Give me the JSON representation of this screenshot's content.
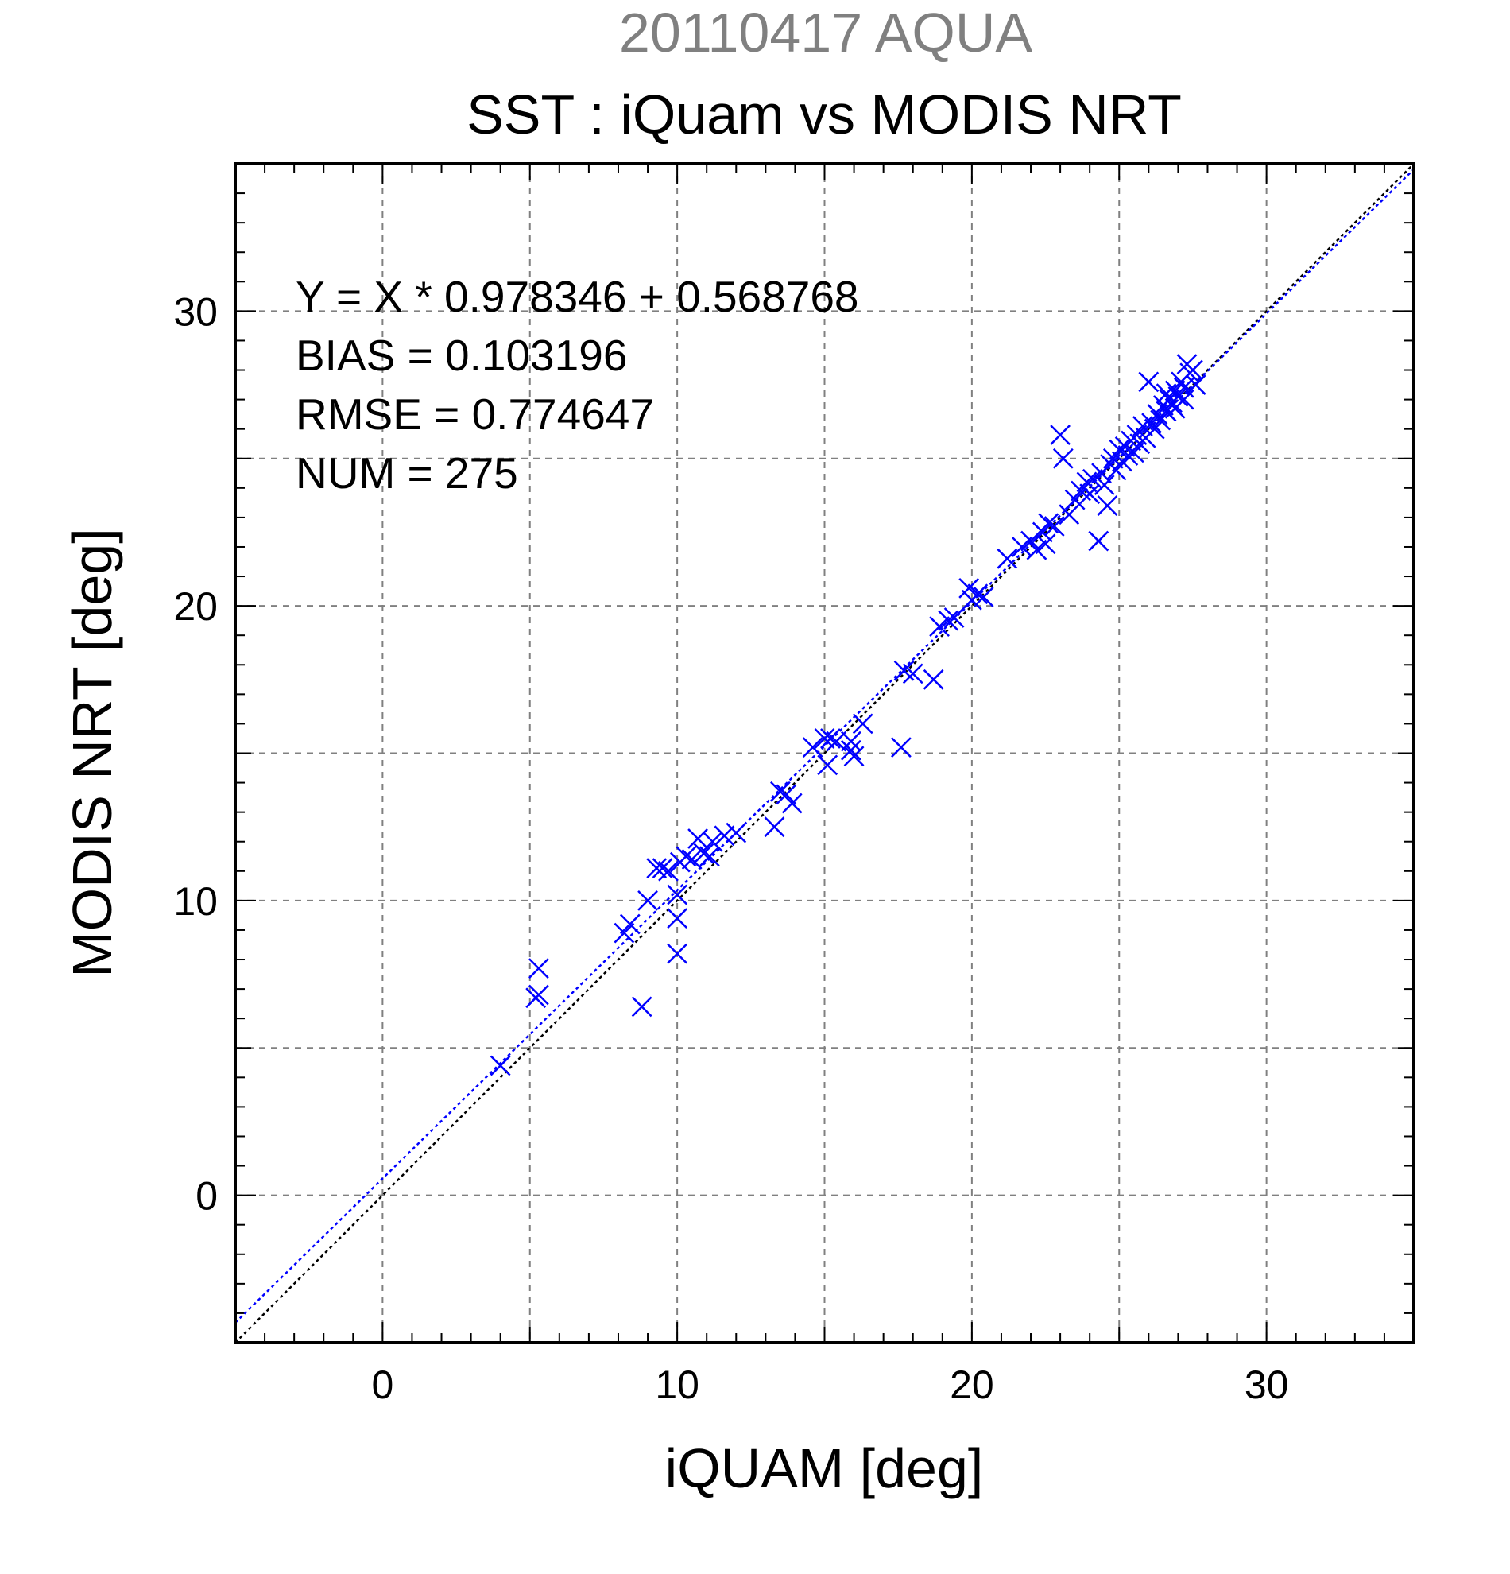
{
  "chart_data": {
    "type": "scatter",
    "supertitle": "20110417 AQUA",
    "title": "SST : iQuam vs MODIS NRT",
    "xlabel": "iQUAM [deg]",
    "ylabel": "MODIS NRT [deg]",
    "xlim": [
      -5,
      35
    ],
    "ylim": [
      -5,
      35
    ],
    "xticks": [
      0,
      10,
      20,
      30
    ],
    "yticks": [
      0,
      10,
      20,
      30
    ],
    "grid": true,
    "marker": "x",
    "colors": {
      "points": "#0000ff",
      "fit_line": "#0000ff",
      "identity_line": "#000000",
      "grid": "#808080",
      "supertitle": "#808080"
    },
    "stats": [
      "Y = X * 0.978346 + 0.568768",
      "BIAS = 0.103196",
      "RMSE = 0.774647",
      "NUM = 275"
    ],
    "fit": {
      "slope": 0.978346,
      "intercept": 0.568768
    },
    "identity": {
      "slope": 1,
      "intercept": 0
    },
    "points": [
      [
        4.0,
        4.4
      ],
      [
        5.2,
        6.7
      ],
      [
        5.3,
        7.7
      ],
      [
        5.3,
        6.8
      ],
      [
        8.2,
        8.9
      ],
      [
        8.4,
        9.2
      ],
      [
        8.8,
        6.4
      ],
      [
        9.0,
        10.0
      ],
      [
        9.3,
        11.1
      ],
      [
        9.5,
        11.1
      ],
      [
        9.7,
        11.0
      ],
      [
        10.0,
        10.2
      ],
      [
        10.0,
        8.2
      ],
      [
        10.0,
        9.4
      ],
      [
        10.1,
        11.3
      ],
      [
        10.3,
        11.5
      ],
      [
        10.5,
        11.4
      ],
      [
        10.7,
        12.1
      ],
      [
        10.9,
        11.6
      ],
      [
        11.2,
        12.0
      ],
      [
        11.1,
        11.5
      ],
      [
        11.6,
        12.2
      ],
      [
        12.0,
        12.3
      ],
      [
        13.3,
        12.5
      ],
      [
        13.5,
        13.7
      ],
      [
        13.7,
        13.6
      ],
      [
        13.9,
        13.3
      ],
      [
        14.6,
        15.2
      ],
      [
        15.0,
        15.5
      ],
      [
        15.1,
        14.6
      ],
      [
        15.2,
        15.5
      ],
      [
        15.4,
        15.4
      ],
      [
        15.9,
        15.1
      ],
      [
        15.9,
        15.4
      ],
      [
        16.0,
        14.9
      ],
      [
        16.3,
        16.0
      ],
      [
        17.6,
        15.2
      ],
      [
        17.7,
        17.8
      ],
      [
        18.0,
        17.7
      ],
      [
        18.7,
        17.5
      ],
      [
        18.9,
        19.3
      ],
      [
        19.2,
        19.5
      ],
      [
        19.4,
        19.6
      ],
      [
        19.9,
        20.6
      ],
      [
        20.0,
        20.2
      ],
      [
        20.2,
        20.4
      ],
      [
        20.4,
        20.3
      ],
      [
        21.2,
        21.6
      ],
      [
        21.7,
        22.0
      ],
      [
        22.0,
        22.2
      ],
      [
        22.2,
        21.9
      ],
      [
        22.4,
        22.5
      ],
      [
        22.5,
        22.1
      ],
      [
        22.6,
        22.8
      ],
      [
        22.8,
        22.7
      ],
      [
        23.0,
        25.8
      ],
      [
        23.1,
        25.0
      ],
      [
        23.3,
        23.1
      ],
      [
        23.5,
        23.6
      ],
      [
        23.7,
        23.9
      ],
      [
        23.9,
        24.2
      ],
      [
        24.0,
        23.8
      ],
      [
        24.1,
        24.3
      ],
      [
        24.3,
        22.2
      ],
      [
        24.4,
        24.5
      ],
      [
        24.5,
        24.1
      ],
      [
        24.6,
        23.4
      ],
      [
        24.7,
        24.8
      ],
      [
        24.8,
        25.0
      ],
      [
        24.9,
        24.6
      ],
      [
        25.0,
        25.3
      ],
      [
        25.1,
        24.9
      ],
      [
        25.2,
        25.4
      ],
      [
        25.3,
        25.1
      ],
      [
        25.4,
        25.6
      ],
      [
        25.5,
        25.2
      ],
      [
        25.6,
        25.8
      ],
      [
        25.7,
        25.5
      ],
      [
        25.8,
        26.1
      ],
      [
        25.9,
        25.7
      ],
      [
        26.0,
        27.6
      ],
      [
        26.1,
        26.2
      ],
      [
        26.2,
        26.0
      ],
      [
        26.3,
        26.5
      ],
      [
        26.4,
        26.3
      ],
      [
        26.5,
        26.8
      ],
      [
        26.6,
        26.6
      ],
      [
        26.7,
        27.0
      ],
      [
        26.8,
        26.9
      ],
      [
        26.9,
        27.3
      ],
      [
        27.0,
        27.1
      ],
      [
        27.1,
        27.6
      ],
      [
        27.2,
        27.4
      ],
      [
        27.3,
        28.2
      ],
      [
        27.4,
        27.9
      ],
      [
        27.5,
        28.0
      ],
      [
        27.6,
        27.5
      ],
      [
        27.2,
        27.0
      ],
      [
        26.9,
        26.7
      ],
      [
        26.6,
        27.2
      ]
    ]
  }
}
